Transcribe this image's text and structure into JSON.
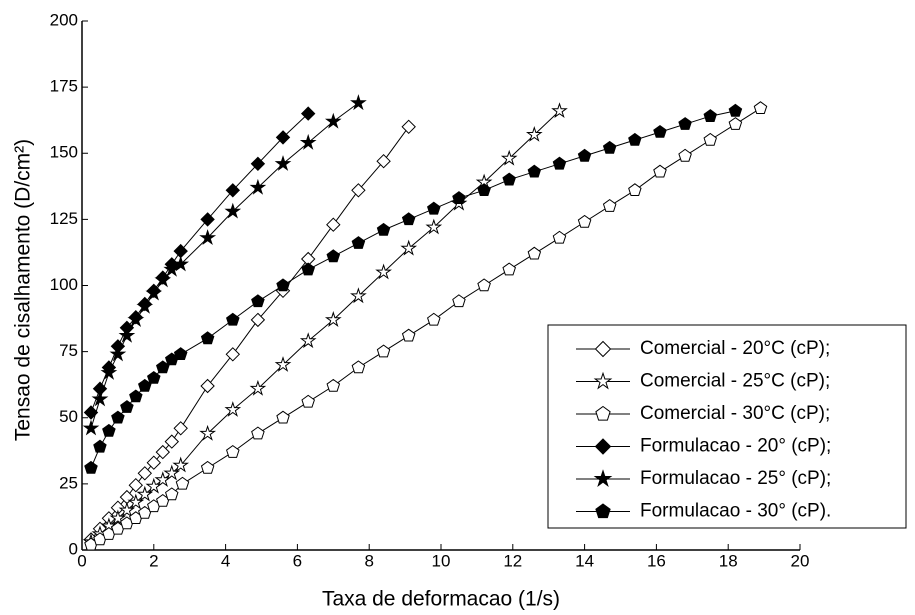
{
  "chart_data": {
    "type": "line",
    "xlabel": "Taxa de deformacao (1/s)",
    "ylabel": "Tensao de cisalhamento (D/cm²)",
    "xlim": [
      0,
      20
    ],
    "xticks": [
      0,
      2,
      4,
      6,
      8,
      10,
      12,
      14,
      16,
      18,
      20
    ],
    "ylim": [
      0,
      200
    ],
    "yticks": [
      0,
      25,
      50,
      75,
      100,
      125,
      150,
      175,
      200
    ],
    "legend": "lower right",
    "series": [
      {
        "name": "Comercial - 20°C (cP);",
        "color": "#000000",
        "marker": "diamond",
        "filled": false,
        "x": [
          0.25,
          0.5,
          0.75,
          1.0,
          1.25,
          1.5,
          1.75,
          2.0,
          2.25,
          2.5,
          2.75,
          3.5,
          4.2,
          4.9,
          5.6,
          6.3,
          7.0,
          7.7,
          8.4,
          9.1
        ],
        "values": [
          4,
          8,
          12,
          16,
          20,
          24.5,
          29,
          33,
          37,
          41,
          46,
          62,
          74,
          87,
          98,
          110,
          123,
          136,
          147,
          160
        ]
      },
      {
        "name": "Comercial - 25°C (cP);",
        "color": "#000000",
        "marker": "star",
        "filled": false,
        "x": [
          0.25,
          0.5,
          0.75,
          1.0,
          1.25,
          1.5,
          1.75,
          2.0,
          2.25,
          2.5,
          2.75,
          3.5,
          4.2,
          4.9,
          5.6,
          6.3,
          7.0,
          7.7,
          8.4,
          9.1,
          9.8,
          10.5,
          11.2,
          11.9,
          12.6,
          13.3
        ],
        "values": [
          3,
          6,
          9,
          12,
          15,
          18,
          21,
          24,
          26.5,
          29,
          32,
          44,
          53,
          61,
          70,
          79,
          87,
          96,
          105,
          114,
          122,
          131,
          139,
          148,
          157,
          166
        ]
      },
      {
        "name": "Comercial - 30°C (cP);",
        "color": "#000000",
        "marker": "pentagon",
        "filled": false,
        "x": [
          0.25,
          0.5,
          0.75,
          1.0,
          1.25,
          1.5,
          1.75,
          2.0,
          2.25,
          2.5,
          2.8,
          3.5,
          4.2,
          4.9,
          5.6,
          6.3,
          7.0,
          7.7,
          8.4,
          9.1,
          9.8,
          10.5,
          11.2,
          11.9,
          12.6,
          13.3,
          14.0,
          14.7,
          15.4,
          16.1,
          16.8,
          17.5,
          18.2,
          18.9
        ],
        "values": [
          2,
          4,
          6,
          8,
          10,
          12,
          14,
          16.5,
          18.5,
          21,
          25,
          31,
          37,
          44,
          50,
          56,
          62,
          69,
          75,
          81,
          87,
          94,
          100,
          106,
          112,
          118,
          124,
          130,
          136,
          143,
          149,
          155,
          161,
          167
        ]
      },
      {
        "name": "Formulacao - 20° (cP);",
        "color": "#000000",
        "marker": "diamond",
        "filled": true,
        "x": [
          0.25,
          0.5,
          0.75,
          1.0,
          1.25,
          1.5,
          1.75,
          2.0,
          2.25,
          2.5,
          2.75,
          3.5,
          4.2,
          4.9,
          5.6,
          6.3
        ],
        "values": [
          52,
          61,
          69,
          77,
          84,
          88,
          93,
          98,
          103,
          108,
          113,
          125,
          136,
          146,
          156,
          165
        ]
      },
      {
        "name": "Formulacao - 25° (cP);",
        "color": "#000000",
        "marker": "star",
        "filled": true,
        "x": [
          0.25,
          0.5,
          0.75,
          1.0,
          1.25,
          1.5,
          1.75,
          2.0,
          2.25,
          2.5,
          2.75,
          3.5,
          4.2,
          4.9,
          5.6,
          6.3,
          7.0,
          7.7
        ],
        "values": [
          46,
          57,
          67,
          74,
          81,
          87,
          92,
          97,
          102,
          106,
          108,
          118,
          128,
          137,
          146,
          154,
          162,
          169
        ]
      },
      {
        "name": "Formulacao - 30° (cP).",
        "color": "#000000",
        "marker": "pentagon",
        "filled": true,
        "x": [
          0.25,
          0.5,
          0.75,
          1.0,
          1.25,
          1.5,
          1.75,
          2.0,
          2.25,
          2.5,
          2.75,
          3.5,
          4.2,
          4.9,
          5.6,
          6.3,
          7.0,
          7.7,
          8.4,
          9.1,
          9.8,
          10.5,
          11.2,
          11.9,
          12.6,
          13.3,
          14.0,
          14.7,
          15.4,
          16.1,
          16.8,
          17.5,
          18.2
        ],
        "values": [
          31,
          39,
          45,
          50,
          54,
          58,
          62,
          65,
          69,
          72,
          74,
          80,
          87,
          94,
          100,
          106,
          111,
          116,
          121,
          125,
          129,
          133,
          136,
          140,
          143,
          146,
          149,
          152,
          155,
          158,
          161,
          164,
          166
        ]
      }
    ]
  }
}
